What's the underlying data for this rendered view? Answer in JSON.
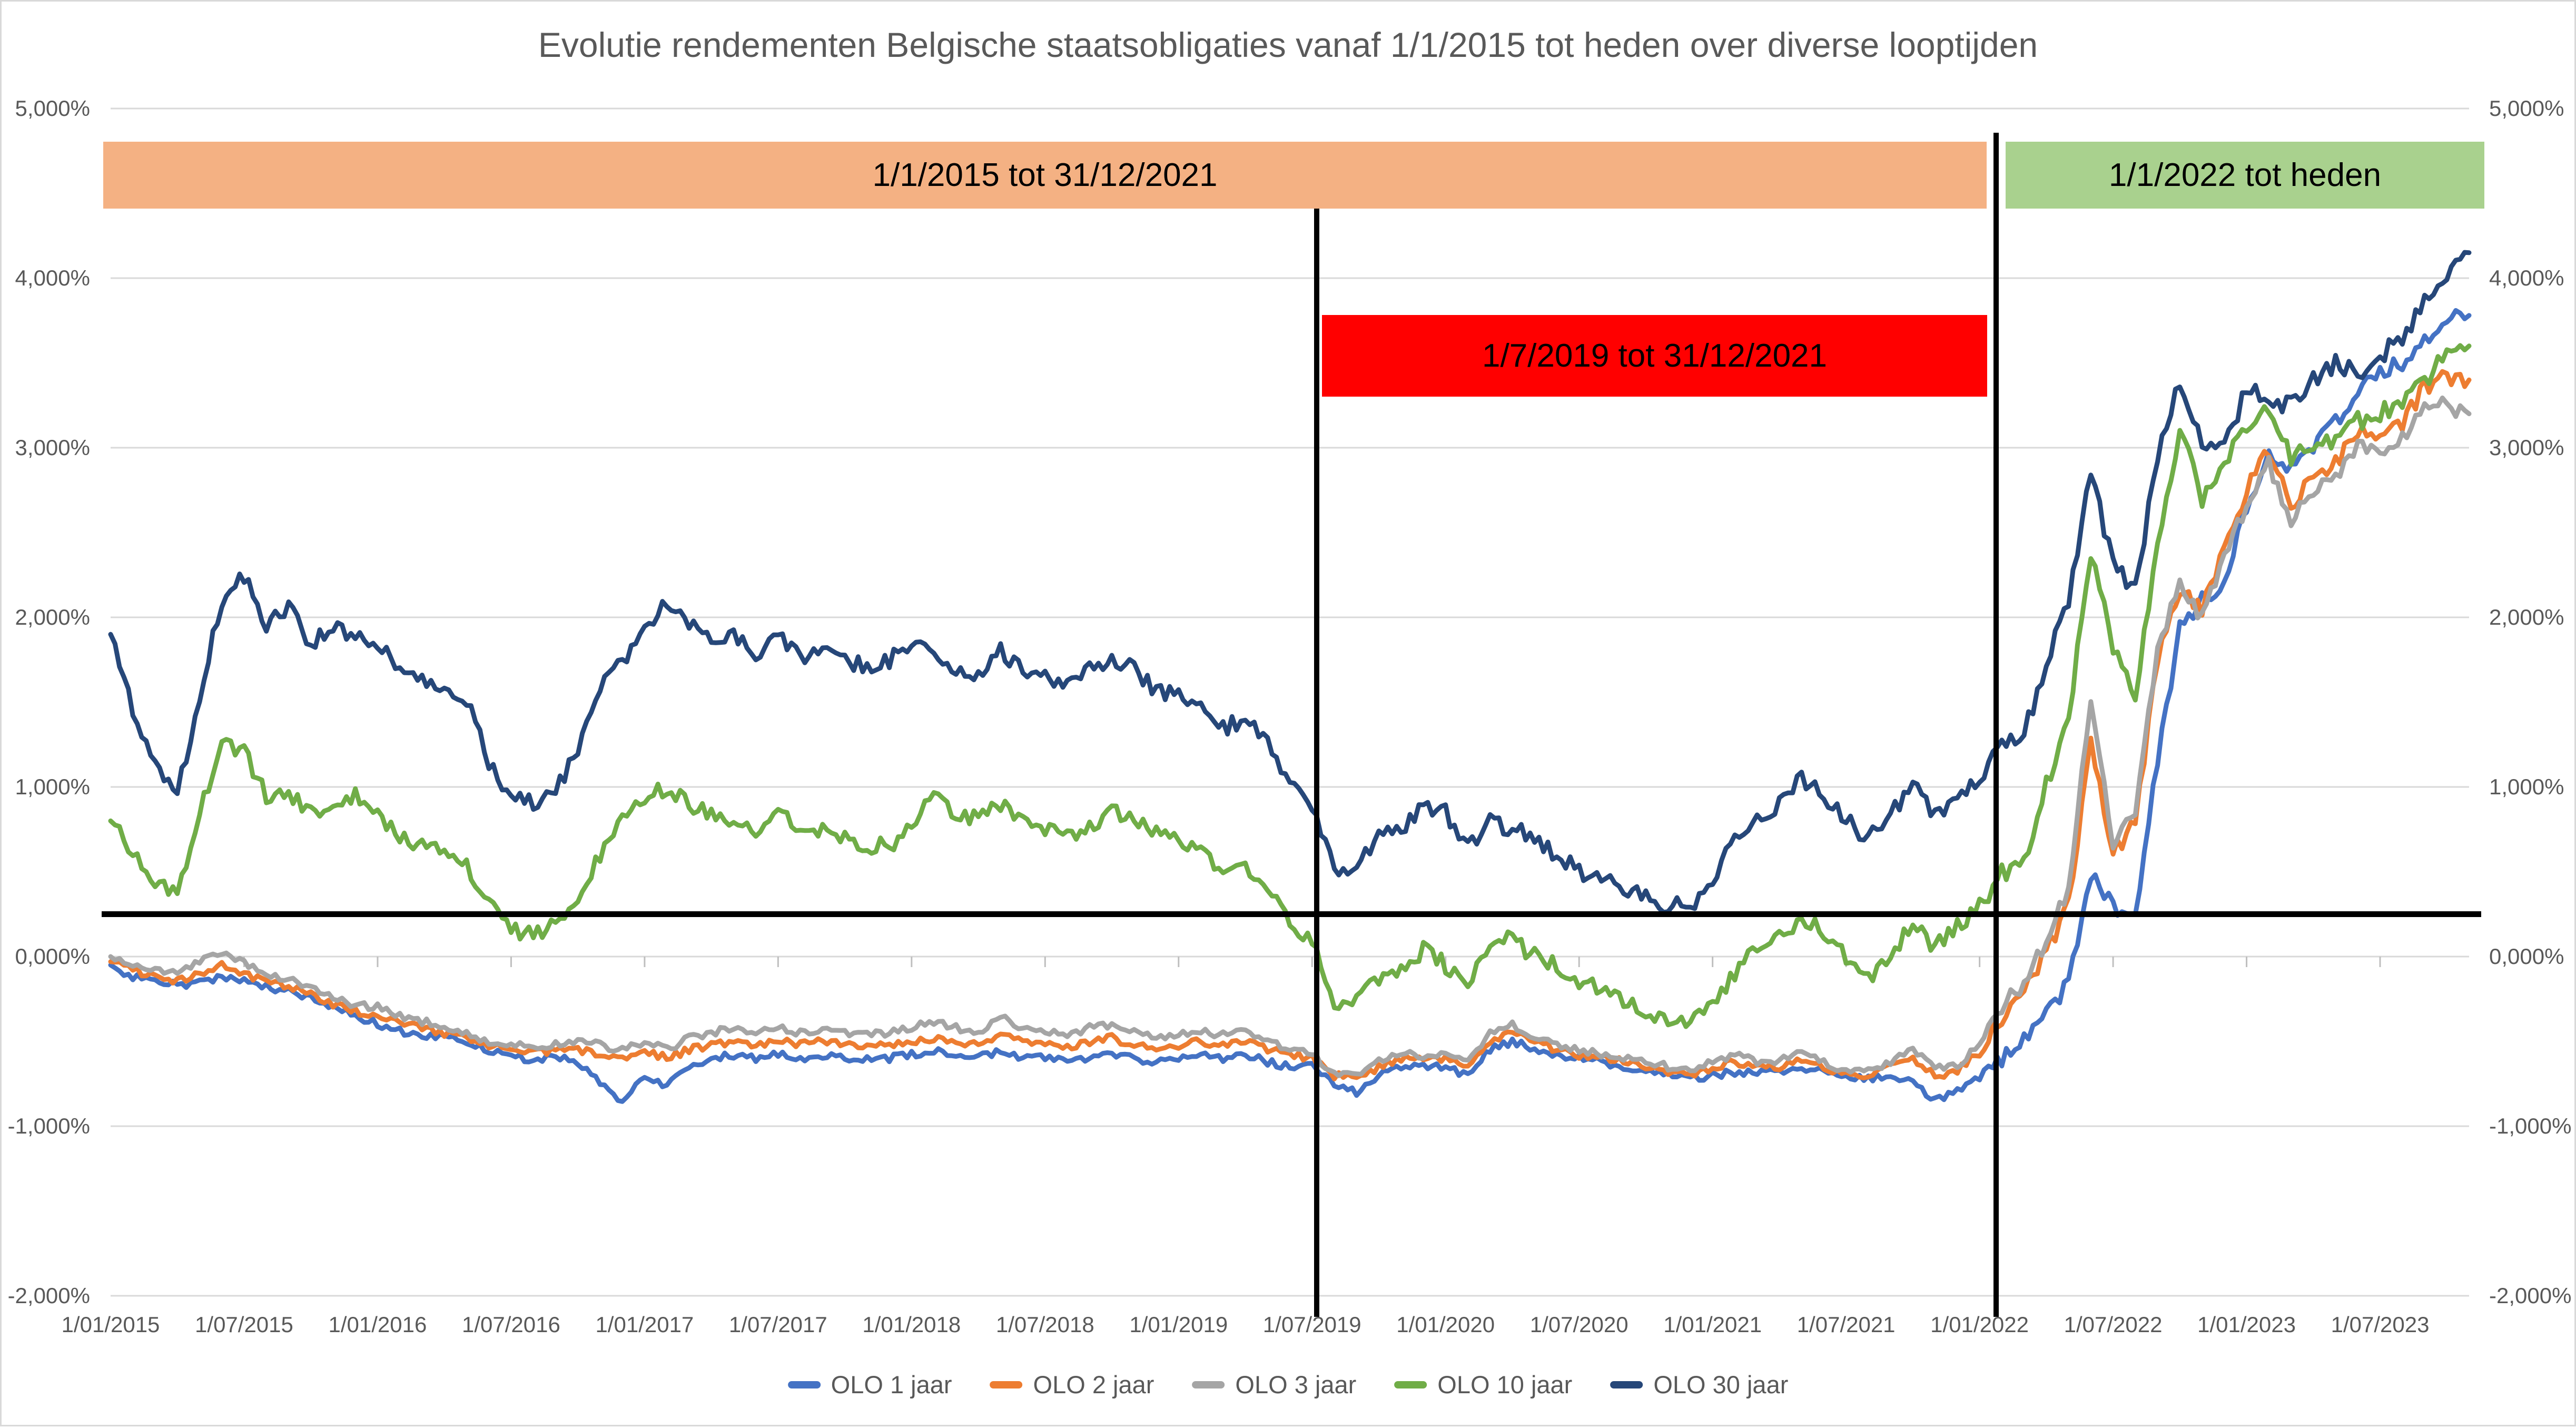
{
  "title": "Evolutie rendementen Belgische staatsobligaties vanaf 1/1/2015 tot heden over diverse looptijden",
  "annotations": {
    "band_orange": {
      "label": "1/1/2015 tot 31/12/2021",
      "color": "#F4B183"
    },
    "band_green": {
      "label": "1/1/2022 tot heden",
      "color": "#A9D18E"
    },
    "box_red": {
      "label": "1/7/2019 tot 31/12/2021",
      "color": "#FF0000"
    },
    "vline_left": {
      "x_date": "1/07/2019",
      "color": "#000000"
    },
    "vline_right": {
      "x_date": "1/01/2022",
      "color": "#000000"
    },
    "reference_hline": {
      "value_pct": 0.25,
      "color": "#000000"
    }
  },
  "chart_data": {
    "type": "line",
    "title": "Evolutie rendementen Belgische staatsobligaties vanaf 1/1/2015 tot heden over diverse looptijden",
    "xlabel": "",
    "ylabel": "",
    "ylim": [
      -2.0,
      5.0
    ],
    "grid": true,
    "legend_position": "bottom",
    "y_tick_labels": [
      "5,000%",
      "4,000%",
      "3,000%",
      "2,000%",
      "1,000%",
      "0,000%",
      "-1,000%",
      "-2,000%"
    ],
    "y_tick_values": [
      5,
      4,
      3,
      2,
      1,
      0,
      -1,
      -2
    ],
    "x_tick_labels": [
      "1/01/2015",
      "1/07/2015",
      "1/01/2016",
      "1/07/2016",
      "1/01/2017",
      "1/07/2017",
      "1/01/2018",
      "1/07/2018",
      "1/01/2019",
      "1/07/2019",
      "1/01/2020",
      "1/07/2020",
      "1/01/2021",
      "1/07/2021",
      "1/01/2022",
      "1/07/2022",
      "1/01/2023",
      "1/07/2023"
    ],
    "x_monthly": [
      "2015-01",
      "2015-02",
      "2015-03",
      "2015-04",
      "2015-05",
      "2015-06",
      "2015-07",
      "2015-08",
      "2015-09",
      "2015-10",
      "2015-11",
      "2015-12",
      "2016-01",
      "2016-02",
      "2016-03",
      "2016-04",
      "2016-05",
      "2016-06",
      "2016-07",
      "2016-08",
      "2016-09",
      "2016-10",
      "2016-11",
      "2016-12",
      "2017-01",
      "2017-02",
      "2017-03",
      "2017-04",
      "2017-05",
      "2017-06",
      "2017-07",
      "2017-08",
      "2017-09",
      "2017-10",
      "2017-11",
      "2017-12",
      "2018-01",
      "2018-02",
      "2018-03",
      "2018-04",
      "2018-05",
      "2018-06",
      "2018-07",
      "2018-08",
      "2018-09",
      "2018-10",
      "2018-11",
      "2018-12",
      "2019-01",
      "2019-02",
      "2019-03",
      "2019-04",
      "2019-05",
      "2019-06",
      "2019-07",
      "2019-08",
      "2019-09",
      "2019-10",
      "2019-11",
      "2019-12",
      "2020-01",
      "2020-02",
      "2020-03",
      "2020-04",
      "2020-05",
      "2020-06",
      "2020-07",
      "2020-08",
      "2020-09",
      "2020-10",
      "2020-11",
      "2020-12",
      "2021-01",
      "2021-02",
      "2021-03",
      "2021-04",
      "2021-05",
      "2021-06",
      "2021-07",
      "2021-08",
      "2021-09",
      "2021-10",
      "2021-11",
      "2021-12",
      "2022-01",
      "2022-02",
      "2022-03",
      "2022-04",
      "2022-05",
      "2022-06",
      "2022-07",
      "2022-08",
      "2022-09",
      "2022-10",
      "2022-11",
      "2022-12",
      "2023-01",
      "2023-02",
      "2023-03",
      "2023-04",
      "2023-05",
      "2023-06",
      "2023-07",
      "2023-08",
      "2023-09",
      "2023-10",
      "2023-11"
    ],
    "series": [
      {
        "name": "OLO 1 jaar",
        "color": "#4472C4",
        "values": [
          -0.05,
          -0.12,
          -0.15,
          -0.17,
          -0.15,
          -0.12,
          -0.15,
          -0.18,
          -0.2,
          -0.25,
          -0.3,
          -0.35,
          -0.4,
          -0.44,
          -0.46,
          -0.48,
          -0.5,
          -0.55,
          -0.6,
          -0.6,
          -0.6,
          -0.62,
          -0.75,
          -0.87,
          -0.7,
          -0.76,
          -0.66,
          -0.6,
          -0.58,
          -0.6,
          -0.58,
          -0.6,
          -0.58,
          -0.6,
          -0.6,
          -0.6,
          -0.58,
          -0.55,
          -0.58,
          -0.6,
          -0.55,
          -0.6,
          -0.6,
          -0.62,
          -0.6,
          -0.58,
          -0.6,
          -0.62,
          -0.6,
          -0.58,
          -0.6,
          -0.58,
          -0.62,
          -0.65,
          -0.65,
          -0.75,
          -0.8,
          -0.7,
          -0.66,
          -0.65,
          -0.65,
          -0.7,
          -0.55,
          -0.5,
          -0.55,
          -0.58,
          -0.6,
          -0.62,
          -0.65,
          -0.68,
          -0.7,
          -0.72,
          -0.7,
          -0.68,
          -0.68,
          -0.68,
          -0.65,
          -0.68,
          -0.72,
          -0.72,
          -0.7,
          -0.75,
          -0.85,
          -0.8,
          -0.68,
          -0.6,
          -0.48,
          -0.35,
          -0.15,
          0.5,
          0.3,
          0.25,
          1.15,
          1.95,
          2.1,
          2.2,
          2.65,
          2.95,
          2.9,
          3.0,
          3.15,
          3.35,
          3.45,
          3.5,
          3.65,
          3.75,
          3.78
        ]
      },
      {
        "name": "OLO 2 jaar",
        "color": "#ED7D31",
        "values": [
          -0.03,
          -0.08,
          -0.12,
          -0.14,
          -0.1,
          -0.05,
          -0.1,
          -0.15,
          -0.18,
          -0.22,
          -0.28,
          -0.32,
          -0.35,
          -0.4,
          -0.42,
          -0.45,
          -0.48,
          -0.52,
          -0.55,
          -0.57,
          -0.55,
          -0.55,
          -0.58,
          -0.6,
          -0.55,
          -0.6,
          -0.55,
          -0.52,
          -0.5,
          -0.52,
          -0.5,
          -0.52,
          -0.5,
          -0.52,
          -0.52,
          -0.52,
          -0.5,
          -0.48,
          -0.5,
          -0.52,
          -0.45,
          -0.5,
          -0.52,
          -0.54,
          -0.5,
          -0.48,
          -0.52,
          -0.54,
          -0.52,
          -0.5,
          -0.52,
          -0.5,
          -0.55,
          -0.58,
          -0.6,
          -0.7,
          -0.72,
          -0.65,
          -0.6,
          -0.6,
          -0.6,
          -0.65,
          -0.5,
          -0.45,
          -0.5,
          -0.55,
          -0.58,
          -0.6,
          -0.62,
          -0.65,
          -0.68,
          -0.7,
          -0.65,
          -0.62,
          -0.65,
          -0.65,
          -0.6,
          -0.65,
          -0.7,
          -0.7,
          -0.65,
          -0.6,
          -0.7,
          -0.68,
          -0.55,
          -0.38,
          -0.22,
          0.02,
          0.3,
          1.3,
          0.6,
          0.8,
          1.75,
          2.15,
          2.05,
          2.4,
          2.75,
          3.0,
          2.65,
          2.85,
          2.9,
          3.1,
          3.1,
          3.15,
          3.35,
          3.42,
          3.4
        ]
      },
      {
        "name": "OLO 3 jaar",
        "color": "#A5A5A5",
        "values": [
          0.0,
          -0.05,
          -0.08,
          -0.1,
          -0.02,
          0.03,
          -0.03,
          -0.1,
          -0.13,
          -0.18,
          -0.25,
          -0.28,
          -0.3,
          -0.35,
          -0.38,
          -0.42,
          -0.45,
          -0.5,
          -0.52,
          -0.54,
          -0.52,
          -0.5,
          -0.52,
          -0.55,
          -0.5,
          -0.55,
          -0.48,
          -0.45,
          -0.42,
          -0.45,
          -0.42,
          -0.45,
          -0.42,
          -0.45,
          -0.45,
          -0.45,
          -0.42,
          -0.38,
          -0.42,
          -0.45,
          -0.35,
          -0.42,
          -0.44,
          -0.46,
          -0.42,
          -0.4,
          -0.45,
          -0.48,
          -0.45,
          -0.44,
          -0.46,
          -0.44,
          -0.5,
          -0.55,
          -0.58,
          -0.68,
          -0.7,
          -0.62,
          -0.58,
          -0.58,
          -0.58,
          -0.62,
          -0.45,
          -0.4,
          -0.48,
          -0.52,
          -0.55,
          -0.58,
          -0.6,
          -0.62,
          -0.65,
          -0.68,
          -0.62,
          -0.58,
          -0.62,
          -0.62,
          -0.55,
          -0.62,
          -0.68,
          -0.68,
          -0.62,
          -0.55,
          -0.65,
          -0.65,
          -0.5,
          -0.3,
          -0.15,
          0.1,
          0.4,
          1.5,
          0.65,
          0.85,
          1.8,
          2.2,
          2.0,
          2.35,
          2.65,
          2.9,
          2.55,
          2.75,
          2.8,
          3.0,
          3.0,
          3.05,
          3.25,
          3.25,
          3.2
        ]
      },
      {
        "name": "OLO 10 jaar",
        "color": "#70AD47",
        "values": [
          0.8,
          0.6,
          0.45,
          0.38,
          0.85,
          1.25,
          1.2,
          0.95,
          0.95,
          0.85,
          0.9,
          0.95,
          0.85,
          0.7,
          0.65,
          0.6,
          0.55,
          0.3,
          0.15,
          0.12,
          0.2,
          0.35,
          0.6,
          0.85,
          0.95,
          1.0,
          0.9,
          0.85,
          0.8,
          0.7,
          0.85,
          0.75,
          0.75,
          0.7,
          0.65,
          0.65,
          0.75,
          0.95,
          0.85,
          0.8,
          0.9,
          0.8,
          0.75,
          0.7,
          0.75,
          0.85,
          0.8,
          0.75,
          0.7,
          0.6,
          0.5,
          0.55,
          0.4,
          0.2,
          0.1,
          -0.3,
          -0.25,
          -0.15,
          -0.1,
          0.05,
          -0.05,
          -0.2,
          0.1,
          0.1,
          0.0,
          -0.05,
          -0.15,
          -0.2,
          -0.25,
          -0.35,
          -0.38,
          -0.4,
          -0.3,
          -0.1,
          0.05,
          0.1,
          0.22,
          0.15,
          0.0,
          -0.15,
          0.0,
          0.2,
          0.05,
          0.18,
          0.3,
          0.5,
          0.55,
          1.0,
          1.4,
          2.4,
          1.8,
          1.55,
          2.45,
          3.1,
          2.7,
          2.95,
          3.1,
          3.25,
          2.95,
          3.05,
          3.05,
          3.15,
          3.2,
          3.25,
          3.4,
          3.55,
          3.6
        ]
      },
      {
        "name": "OLO 30 jaar",
        "color": "#264779",
        "values": [
          1.9,
          1.45,
          1.15,
          0.95,
          1.55,
          2.1,
          2.25,
          1.95,
          2.05,
          1.85,
          1.95,
          1.9,
          1.85,
          1.7,
          1.65,
          1.55,
          1.5,
          1.15,
          0.95,
          0.9,
          1.0,
          1.2,
          1.6,
          1.75,
          1.9,
          2.1,
          1.95,
          1.85,
          1.9,
          1.75,
          1.9,
          1.75,
          1.8,
          1.75,
          1.7,
          1.75,
          1.85,
          1.8,
          1.7,
          1.65,
          1.8,
          1.7,
          1.65,
          1.6,
          1.7,
          1.75,
          1.7,
          1.55,
          1.55,
          1.45,
          1.35,
          1.4,
          1.25,
          1.05,
          0.9,
          0.5,
          0.55,
          0.7,
          0.75,
          0.9,
          0.85,
          0.65,
          0.8,
          0.75,
          0.7,
          0.6,
          0.5,
          0.45,
          0.4,
          0.35,
          0.3,
          0.3,
          0.45,
          0.7,
          0.8,
          0.9,
          1.05,
          0.95,
          0.8,
          0.7,
          0.85,
          1.0,
          0.85,
          0.9,
          1.05,
          1.25,
          1.3,
          1.75,
          2.1,
          2.85,
          2.3,
          2.15,
          2.95,
          3.4,
          3.05,
          3.0,
          3.35,
          3.3,
          3.25,
          3.4,
          3.5,
          3.45,
          3.55,
          3.65,
          3.85,
          4.05,
          4.15
        ]
      }
    ]
  }
}
